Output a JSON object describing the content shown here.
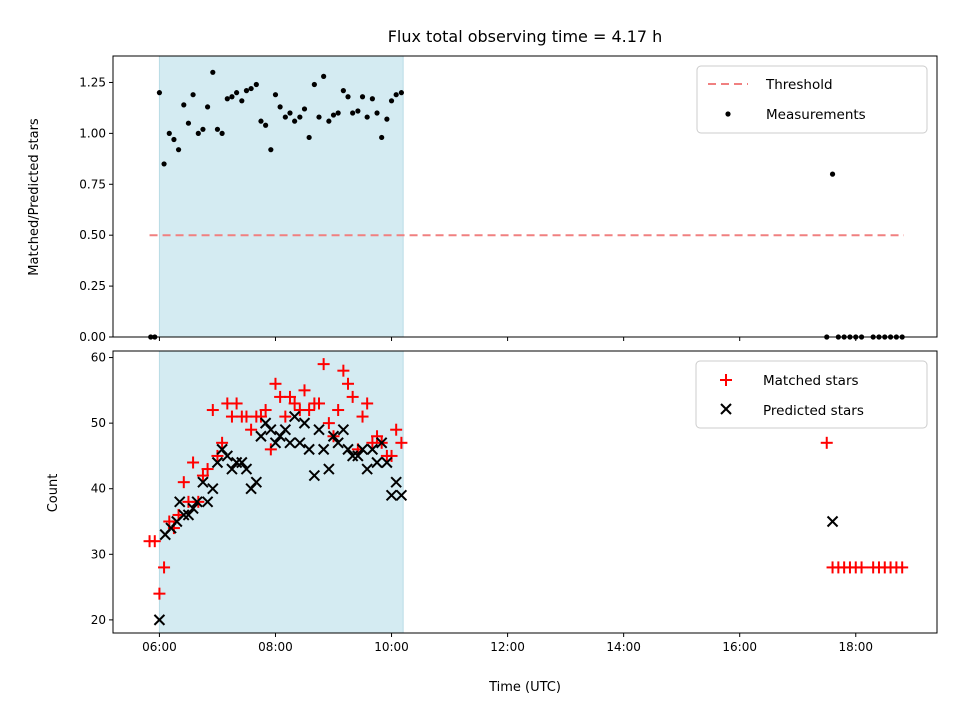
{
  "chart_data": [
    {
      "type": "scatter",
      "title": "Flux total observing time = 4.17 h",
      "ylabel": "Matched/Predicted stars",
      "xlabel": "",
      "xlim": [
        5.2,
        19.4
      ],
      "ylim": [
        0,
        1.38
      ],
      "yticks": [
        0.0,
        0.25,
        0.5,
        0.75,
        1.0,
        1.25
      ],
      "ytick_labels": [
        "0.00",
        "0.25",
        "0.50",
        "0.75",
        "1.00",
        "1.25"
      ],
      "xticks": [
        6,
        8,
        10,
        12,
        14,
        16,
        18
      ],
      "shaded_span": [
        6.0,
        10.2
      ],
      "shaded_color": "#d4ebf2",
      "legend_position": "upper right",
      "grid": false,
      "series": [
        {
          "name": "Threshold",
          "kind": "line",
          "style": "dashed",
          "color": "#f08080",
          "x": [
            5.83,
            18.83
          ],
          "y": [
            0.5,
            0.5
          ]
        },
        {
          "name": "Measurements",
          "kind": "scatter",
          "marker": "dot",
          "color": "#000000",
          "x": [
            5.85,
            5.92,
            6.0,
            6.08,
            6.17,
            6.25,
            6.33,
            6.42,
            6.5,
            6.58,
            6.67,
            6.75,
            6.83,
            6.92,
            7.0,
            7.08,
            7.17,
            7.25,
            7.33,
            7.42,
            7.5,
            7.58,
            7.67,
            7.75,
            7.83,
            7.92,
            8.0,
            8.08,
            8.17,
            8.25,
            8.33,
            8.42,
            8.5,
            8.58,
            8.67,
            8.75,
            8.83,
            8.92,
            9.0,
            9.08,
            9.17,
            9.25,
            9.33,
            9.42,
            9.5,
            9.58,
            9.67,
            9.75,
            9.83,
            9.92,
            10.0,
            10.08,
            10.17,
            17.5,
            17.6,
            17.7,
            17.8,
            17.9,
            18.0,
            18.1,
            18.3,
            18.4,
            18.5,
            18.6,
            18.7,
            18.8
          ],
          "y": [
            0.0,
            0.0,
            1.2,
            0.85,
            1.0,
            0.97,
            0.92,
            1.14,
            1.05,
            1.19,
            1.0,
            1.02,
            1.13,
            1.3,
            1.02,
            1.0,
            1.17,
            1.18,
            1.2,
            1.16,
            1.21,
            1.22,
            1.24,
            1.06,
            1.04,
            0.92,
            1.19,
            1.13,
            1.08,
            1.1,
            1.06,
            1.08,
            1.12,
            0.98,
            1.24,
            1.08,
            1.28,
            1.06,
            1.09,
            1.1,
            1.21,
            1.18,
            1.1,
            1.11,
            1.18,
            1.08,
            1.17,
            1.1,
            0.98,
            1.07,
            1.16,
            1.19,
            1.2,
            0.0,
            0.8,
            0.0,
            0.0,
            0.0,
            0.0,
            0.0,
            0.0,
            0.0,
            0.0,
            0.0,
            0.0,
            0.0
          ]
        }
      ]
    },
    {
      "type": "scatter",
      "title": "",
      "ylabel": "Count",
      "xlabel": "Time (UTC)",
      "xlim": [
        5.2,
        19.4
      ],
      "ylim": [
        18,
        61
      ],
      "yticks": [
        20,
        30,
        40,
        50,
        60
      ],
      "ytick_labels": [
        "20",
        "30",
        "40",
        "50",
        "60"
      ],
      "xticks": [
        6,
        8,
        10,
        12,
        14,
        16,
        18
      ],
      "xtick_labels": [
        "06:00",
        "08:00",
        "10:00",
        "12:00",
        "14:00",
        "16:00",
        "18:00"
      ],
      "shaded_span": [
        6.0,
        10.2
      ],
      "shaded_color": "#d4ebf2",
      "legend_position": "upper right",
      "grid": false,
      "series": [
        {
          "name": "Matched stars",
          "kind": "scatter",
          "marker": "plus",
          "color": "#ff0000",
          "x": [
            5.83,
            5.92,
            6.0,
            6.08,
            6.17,
            6.25,
            6.33,
            6.42,
            6.5,
            6.58,
            6.67,
            6.75,
            6.83,
            6.92,
            7.0,
            7.08,
            7.17,
            7.25,
            7.33,
            7.42,
            7.5,
            7.58,
            7.67,
            7.75,
            7.83,
            7.92,
            8.0,
            8.08,
            8.17,
            8.25,
            8.33,
            8.42,
            8.5,
            8.58,
            8.67,
            8.75,
            8.83,
            8.92,
            9.0,
            9.08,
            9.17,
            9.25,
            9.33,
            9.42,
            9.5,
            9.58,
            9.67,
            9.75,
            9.83,
            9.92,
            10.0,
            10.08,
            10.17,
            17.5,
            17.6,
            17.7,
            17.8,
            17.9,
            18.0,
            18.1,
            18.3,
            18.4,
            18.5,
            18.6,
            18.7,
            18.8
          ],
          "y": [
            32,
            32,
            24,
            28,
            35,
            34,
            36,
            41,
            38,
            44,
            38,
            42,
            43,
            52,
            45,
            47,
            53,
            51,
            53,
            51,
            51,
            49,
            51,
            51,
            52,
            46,
            56,
            54,
            51,
            54,
            53,
            52,
            55,
            52,
            53,
            53,
            59,
            50,
            48,
            52,
            58,
            56,
            54,
            46,
            51,
            53,
            47,
            48,
            47,
            45,
            45,
            49,
            47,
            47,
            28,
            28,
            28,
            28,
            28,
            28,
            28,
            28,
            28,
            28,
            28,
            28
          ]
        },
        {
          "name": "Predicted stars",
          "kind": "scatter",
          "marker": "x",
          "color": "#000000",
          "x": [
            6.0,
            6.1,
            6.2,
            6.3,
            6.35,
            6.42,
            6.5,
            6.58,
            6.65,
            6.75,
            6.83,
            6.92,
            7.0,
            7.08,
            7.17,
            7.25,
            7.33,
            7.42,
            7.5,
            7.58,
            7.67,
            7.75,
            7.83,
            7.92,
            8.0,
            8.08,
            8.17,
            8.25,
            8.33,
            8.42,
            8.5,
            8.58,
            8.67,
            8.75,
            8.83,
            8.92,
            9.0,
            9.08,
            9.17,
            9.25,
            9.33,
            9.42,
            9.5,
            9.58,
            9.67,
            9.75,
            9.83,
            9.92,
            10.0,
            10.08,
            10.17,
            17.6
          ],
          "y": [
            20,
            33,
            34,
            35,
            38,
            36,
            36,
            37,
            38,
            41,
            38,
            40,
            44,
            46,
            45,
            43,
            44,
            44,
            43,
            40,
            41,
            48,
            50,
            49,
            47,
            48,
            49,
            47,
            51,
            47,
            50,
            46,
            42,
            49,
            46,
            43,
            48,
            47,
            49,
            46,
            45,
            45,
            46,
            43,
            46,
            44,
            47,
            44,
            39,
            41,
            39,
            35
          ]
        }
      ]
    }
  ]
}
